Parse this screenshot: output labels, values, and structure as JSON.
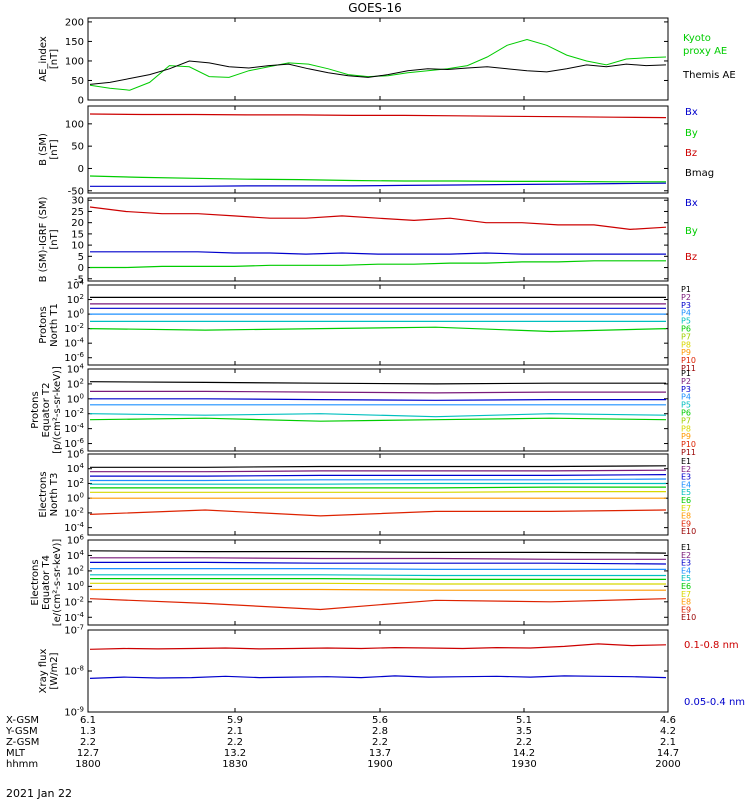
{
  "title": "GOES-16",
  "date_label": "2021 Jan 22",
  "orbit_table": {
    "row_labels": [
      "X-GSM",
      "Y-GSM",
      "Z-GSM",
      "MLT",
      "hhmm"
    ],
    "columns": [
      [
        "6.1",
        "1.3",
        "2.2",
        "12.7",
        "1800"
      ],
      [
        "5.9",
        "2.1",
        "2.2",
        "13.2",
        "1830"
      ],
      [
        "5.6",
        "2.8",
        "2.2",
        "13.7",
        "1900"
      ],
      [
        "5.1",
        "3.5",
        "2.2",
        "14.2",
        "1930"
      ],
      [
        "4.6",
        "4.2",
        "2.1",
        "14.7",
        "2000"
      ]
    ]
  },
  "chart_data": [
    {
      "type": "line",
      "ylabel": "AE_index [nT]",
      "yticks": [
        "200",
        "150",
        "100",
        "50",
        "0"
      ],
      "ylim": [
        0,
        210
      ],
      "x": "1800-2000 UT",
      "legend": [
        {
          "name": "Kyoto proxy AE",
          "color": "#00cc00"
        },
        {
          "name": "Themis AE",
          "color": "#000000"
        }
      ],
      "series": [
        {
          "name": "Kyoto proxy AE",
          "color": "#00cc00",
          "values": [
            38,
            30,
            25,
            45,
            88,
            85,
            60,
            58,
            75,
            85,
            95,
            92,
            80,
            65,
            60,
            62,
            70,
            75,
            80,
            88,
            110,
            140,
            155,
            140,
            115,
            100,
            90,
            105,
            108,
            110
          ]
        },
        {
          "name": "Themis AE",
          "color": "#000000",
          "values": [
            40,
            45,
            55,
            65,
            80,
            100,
            95,
            85,
            82,
            88,
            92,
            80,
            70,
            62,
            58,
            65,
            75,
            80,
            78,
            82,
            85,
            80,
            75,
            72,
            80,
            90,
            85,
            92,
            88,
            90
          ]
        }
      ]
    },
    {
      "type": "line",
      "ylabel": "B (SM) [nT]",
      "yticks": [
        "100",
        "50",
        "0",
        "-50"
      ],
      "ylim": [
        -55,
        140
      ],
      "legend": [
        {
          "name": "Bx",
          "color": "#0000cc"
        },
        {
          "name": "By",
          "color": "#00cc00"
        },
        {
          "name": "Bz",
          "color": "#cc0000"
        },
        {
          "name": "Bmag",
          "color": "#000000"
        }
      ],
      "series": [
        {
          "name": "Bz",
          "color": "#cc0000",
          "values": [
            122,
            121,
            121,
            120,
            120,
            119,
            119,
            118,
            117,
            116,
            115,
            114
          ]
        },
        {
          "name": "By",
          "color": "#00cc00",
          "values": [
            -17,
            -20,
            -22,
            -24,
            -25,
            -27,
            -28,
            -28,
            -29,
            -29,
            -30,
            -30
          ]
        },
        {
          "name": "Bx",
          "color": "#0000cc",
          "values": [
            -40,
            -40,
            -40,
            -39,
            -39,
            -39,
            -38,
            -37,
            -36,
            -35,
            -34,
            -33
          ]
        }
      ]
    },
    {
      "type": "line",
      "ylabel": "B (SM)-IGRF (SM) [nT]",
      "yticks": [
        "30",
        "25",
        "20",
        "15",
        "10",
        "5",
        "0",
        "-5"
      ],
      "ylim": [
        -6,
        31
      ],
      "legend": [
        {
          "name": "Bx",
          "color": "#0000cc"
        },
        {
          "name": "By",
          "color": "#00cc00"
        },
        {
          "name": "Bz",
          "color": "#cc0000"
        }
      ],
      "series": [
        {
          "name": "Bz",
          "color": "#cc0000",
          "values": [
            27,
            25,
            24,
            24,
            23,
            22,
            22,
            23,
            22,
            21,
            22,
            20,
            20,
            19,
            19,
            17,
            18
          ]
        },
        {
          "name": "Bx",
          "color": "#0000cc",
          "values": [
            7,
            7,
            7,
            7,
            6.5,
            6.5,
            6,
            6.5,
            6,
            6,
            6,
            6.5,
            6,
            6,
            6,
            6,
            6
          ]
        },
        {
          "name": "By",
          "color": "#00cc00",
          "values": [
            0,
            0,
            0.5,
            0.5,
            0.5,
            1,
            1,
            1,
            1.5,
            1.5,
            2,
            2,
            2.5,
            2.5,
            3,
            3,
            3
          ]
        }
      ]
    },
    {
      "type": "line",
      "log": true,
      "ylabel": "Protons North T1",
      "yticks": [
        "10^4",
        "10^2",
        "10^0",
        "10^-2",
        "10^-4",
        "10^-6"
      ],
      "ylim": [
        -7,
        4
      ],
      "legend": [
        {
          "name": "P1",
          "color": "#000000"
        },
        {
          "name": "P2",
          "color": "#7a1a7a"
        },
        {
          "name": "P3",
          "color": "#0000cc"
        },
        {
          "name": "P4",
          "color": "#1e90ff"
        },
        {
          "name": "P5",
          "color": "#00bfbf"
        },
        {
          "name": "P6",
          "color": "#00cc00"
        },
        {
          "name": "P7",
          "color": "#a0d000"
        },
        {
          "name": "P8",
          "color": "#d8d800"
        },
        {
          "name": "P9",
          "color": "#ff9900"
        },
        {
          "name": "P10",
          "color": "#dd2200"
        },
        {
          "name": "P11",
          "color": "#990000"
        }
      ],
      "series": [
        {
          "name": "P1",
          "color": "#000000",
          "values": [
            2.3,
            2.3,
            2.3,
            2.3,
            2.3,
            2.3
          ]
        },
        {
          "name": "P2",
          "color": "#7a1a7a",
          "values": [
            1.4,
            1.4,
            1.4,
            1.4,
            1.4,
            1.4
          ]
        },
        {
          "name": "P3",
          "color": "#0000cc",
          "values": [
            0.8,
            0.8,
            0.8,
            0.8,
            0.8,
            0.8
          ]
        },
        {
          "name": "P4",
          "color": "#1e90ff",
          "values": [
            0.0,
            0.0,
            0.0,
            0.0,
            0.0,
            0.0
          ]
        },
        {
          "name": "P5",
          "color": "#00bfbf",
          "values": [
            -1.0,
            -1.0,
            -1.0,
            -1.0,
            -1.0,
            -1.0
          ]
        },
        {
          "name": "P6",
          "color": "#00cc00",
          "values": [
            -2.0,
            -2.2,
            -2.0,
            -1.8,
            -2.4,
            -2.0
          ]
        }
      ]
    },
    {
      "type": "line",
      "log": true,
      "ylabel": "Protons Equator T2 [p/(cm²-s-sr-keV)]",
      "yticks": [
        "10^4",
        "10^2",
        "10^0",
        "10^-2",
        "10^-4",
        "10^-6"
      ],
      "ylim": [
        -7,
        4
      ],
      "legend": [
        {
          "name": "P1",
          "color": "#000000"
        },
        {
          "name": "P2",
          "color": "#7a1a7a"
        },
        {
          "name": "P3",
          "color": "#0000cc"
        },
        {
          "name": "P4",
          "color": "#1e90ff"
        },
        {
          "name": "P5",
          "color": "#00bfbf"
        },
        {
          "name": "P6",
          "color": "#00cc00"
        },
        {
          "name": "P7",
          "color": "#a0d000"
        },
        {
          "name": "P8",
          "color": "#d8d800"
        },
        {
          "name": "P9",
          "color": "#ff9900"
        },
        {
          "name": "P10",
          "color": "#dd2200"
        },
        {
          "name": "P11",
          "color": "#990000"
        }
      ],
      "series": [
        {
          "name": "P1",
          "color": "#000000",
          "values": [
            2.3,
            2.2,
            2.1,
            2.0,
            2.1,
            2.1
          ]
        },
        {
          "name": "P2",
          "color": "#7a1a7a",
          "values": [
            1.0,
            1.0,
            0.9,
            0.8,
            0.9,
            0.9
          ]
        },
        {
          "name": "P3",
          "color": "#0000cc",
          "values": [
            0.0,
            0.0,
            -0.1,
            -0.2,
            -0.1,
            -0.1
          ]
        },
        {
          "name": "P4",
          "color": "#1e90ff",
          "values": [
            -0.8,
            -0.8,
            -0.8,
            -0.8,
            -0.8,
            -0.8
          ]
        },
        {
          "name": "P5",
          "color": "#00bfbf",
          "values": [
            -2.0,
            -2.2,
            -2.0,
            -2.4,
            -2.0,
            -2.2
          ]
        },
        {
          "name": "P6",
          "color": "#00cc00",
          "values": [
            -2.8,
            -2.6,
            -3.0,
            -2.8,
            -2.6,
            -2.8
          ]
        }
      ]
    },
    {
      "type": "line",
      "log": true,
      "ylabel": "Electrons North T3",
      "yticks": [
        "10^6",
        "10^4",
        "10^2",
        "10^0",
        "10^-2",
        "10^-4"
      ],
      "ylim": [
        -5,
        6
      ],
      "legend": [
        {
          "name": "E1",
          "color": "#000000"
        },
        {
          "name": "E2",
          "color": "#7a1a7a"
        },
        {
          "name": "E3",
          "color": "#0000cc"
        },
        {
          "name": "E4",
          "color": "#1e90ff"
        },
        {
          "name": "E5",
          "color": "#00bfbf"
        },
        {
          "name": "E6",
          "color": "#00cc00"
        },
        {
          "name": "E7",
          "color": "#d8d800"
        },
        {
          "name": "E8",
          "color": "#ff9900"
        },
        {
          "name": "E9",
          "color": "#dd2200"
        },
        {
          "name": "E10",
          "color": "#990000"
        }
      ],
      "series": [
        {
          "name": "E1",
          "color": "#000000",
          "values": [
            4.2,
            4.2,
            4.3,
            4.3,
            4.3,
            4.4
          ]
        },
        {
          "name": "E2",
          "color": "#7a1a7a",
          "values": [
            3.6,
            3.6,
            3.7,
            3.7,
            3.7,
            3.8
          ]
        },
        {
          "name": "E3",
          "color": "#0000cc",
          "values": [
            3.0,
            3.0,
            3.1,
            3.1,
            3.1,
            3.2
          ]
        },
        {
          "name": "E4",
          "color": "#1e90ff",
          "values": [
            2.4,
            2.4,
            2.5,
            2.5,
            2.5,
            2.6
          ]
        },
        {
          "name": "E5",
          "color": "#00bfbf",
          "values": [
            1.9,
            1.9,
            1.9,
            2.0,
            2.0,
            2.0
          ]
        },
        {
          "name": "E6",
          "color": "#00cc00",
          "values": [
            1.4,
            1.4,
            1.4,
            1.4,
            1.5,
            1.5
          ]
        },
        {
          "name": "E7",
          "color": "#d8d800",
          "values": [
            0.8,
            0.8,
            0.8,
            0.8,
            0.9,
            0.9
          ]
        },
        {
          "name": "E8",
          "color": "#ff9900",
          "values": [
            0.0,
            0.0,
            0.0,
            0.0,
            0.0,
            0.0
          ]
        },
        {
          "name": "E9",
          "color": "#dd2200",
          "values": [
            -2.2,
            -1.6,
            -2.4,
            -1.8,
            -1.8,
            -1.6
          ]
        }
      ]
    },
    {
      "type": "line",
      "log": true,
      "ylabel": "Electrons Equator T4 [e/(cm²-s-sr-keV)]",
      "yticks": [
        "10^6",
        "10^4",
        "10^2",
        "10^0",
        "10^-2",
        "10^-4"
      ],
      "ylim": [
        -5,
        6
      ],
      "legend": [
        {
          "name": "E1",
          "color": "#000000"
        },
        {
          "name": "E2",
          "color": "#7a1a7a"
        },
        {
          "name": "E3",
          "color": "#0000cc"
        },
        {
          "name": "E4",
          "color": "#1e90ff"
        },
        {
          "name": "E5",
          "color": "#00bfbf"
        },
        {
          "name": "E6",
          "color": "#00cc00"
        },
        {
          "name": "E7",
          "color": "#d8d800"
        },
        {
          "name": "E8",
          "color": "#ff9900"
        },
        {
          "name": "E9",
          "color": "#dd2200"
        },
        {
          "name": "E10",
          "color": "#990000"
        }
      ],
      "series": [
        {
          "name": "E1",
          "color": "#000000",
          "values": [
            4.6,
            4.5,
            4.5,
            4.4,
            4.4,
            4.3
          ]
        },
        {
          "name": "E2",
          "color": "#7a1a7a",
          "values": [
            3.7,
            3.7,
            3.6,
            3.6,
            3.5,
            3.5
          ]
        },
        {
          "name": "E3",
          "color": "#0000cc",
          "values": [
            3.1,
            3.1,
            3.0,
            3.0,
            3.0,
            2.9
          ]
        },
        {
          "name": "E4",
          "color": "#1e90ff",
          "values": [
            2.3,
            2.3,
            2.3,
            2.2,
            2.2,
            2.2
          ]
        },
        {
          "name": "E5",
          "color": "#00bfbf",
          "values": [
            1.5,
            1.5,
            1.5,
            1.4,
            1.4,
            1.4
          ]
        },
        {
          "name": "E6",
          "color": "#00cc00",
          "values": [
            1.0,
            1.0,
            1.0,
            0.9,
            0.9,
            0.9
          ]
        },
        {
          "name": "E7",
          "color": "#d8d800",
          "values": [
            0.4,
            0.4,
            0.4,
            0.3,
            0.3,
            0.3
          ]
        },
        {
          "name": "E8",
          "color": "#ff9900",
          "values": [
            -0.4,
            -0.4,
            -0.4,
            -0.5,
            -0.5,
            -0.5
          ]
        },
        {
          "name": "E9",
          "color": "#dd2200",
          "values": [
            -1.6,
            -2.2,
            -3.0,
            -1.8,
            -2.0,
            -1.6
          ]
        }
      ]
    },
    {
      "type": "line",
      "log": true,
      "ylabel": "Xray flux [W/m2]",
      "yticks": [
        "10^-7",
        "10^-8",
        "10^-9"
      ],
      "ylim": [
        -9,
        -7
      ],
      "legend": [
        {
          "name": "0.1-0.8 nm",
          "color": "#cc0000"
        },
        {
          "name": "0.05-0.4 nm",
          "color": "#0000cc"
        }
      ],
      "series": [
        {
          "name": "0.1-0.8 nm",
          "color": "#cc0000",
          "values": [
            -7.47,
            -7.45,
            -7.46,
            -7.45,
            -7.44,
            -7.46,
            -7.45,
            -7.44,
            -7.45,
            -7.43,
            -7.44,
            -7.45,
            -7.43,
            -7.44,
            -7.4,
            -7.34,
            -7.38,
            -7.36
          ]
        },
        {
          "name": "0.05-0.4 nm",
          "color": "#0000cc",
          "values": [
            -8.18,
            -8.15,
            -8.17,
            -8.16,
            -8.13,
            -8.16,
            -8.15,
            -8.14,
            -8.16,
            -8.12,
            -8.15,
            -8.14,
            -8.13,
            -8.15,
            -8.12,
            -8.13,
            -8.14,
            -8.16
          ]
        }
      ]
    }
  ]
}
